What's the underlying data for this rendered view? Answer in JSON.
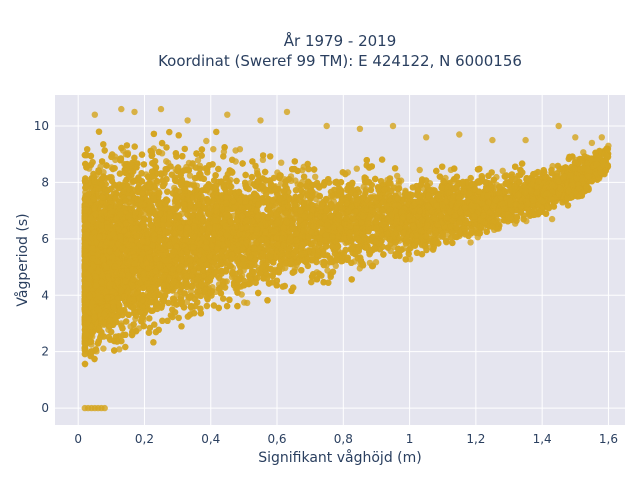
{
  "chart_data": {
    "type": "scatter",
    "title_line1": "År 1979 - 2019",
    "title_line2": "Koordinat (Sweref 99 TM): E 424122, N 6000156",
    "xlabel": "Signifikant våghöjd (m)",
    "ylabel": "Vågperiod (s)",
    "xlim": [
      -0.07,
      1.65
    ],
    "ylim": [
      -0.6,
      11.1
    ],
    "xticks": [
      0,
      0.2,
      0.4,
      0.6,
      0.8,
      1,
      1.2,
      1.4,
      1.6
    ],
    "xtick_labels": [
      "0",
      "0,2",
      "0,4",
      "0,6",
      "0,8",
      "1",
      "1,2",
      "1,4",
      "1,6"
    ],
    "yticks": [
      0,
      2,
      4,
      6,
      8,
      10
    ],
    "ytick_labels": [
      "0",
      "2",
      "4",
      "6",
      "8",
      "10"
    ],
    "grid": true,
    "marker_color": "#d4a520",
    "plot_bg": "#e5e5ef",
    "grid_color": "#ffffff",
    "envelope": {
      "x": [
        0.02,
        0.05,
        0.1,
        0.2,
        0.3,
        0.4,
        0.5,
        0.6,
        0.7,
        0.8,
        0.9,
        1.0,
        1.1,
        1.2,
        1.3,
        1.4,
        1.5,
        1.6
      ],
      "y_low": [
        1.1,
        1.1,
        1.3,
        2.0,
        2.6,
        3.0,
        3.4,
        3.8,
        4.1,
        4.4,
        4.7,
        5.0,
        5.4,
        5.8,
        6.2,
        6.6,
        7.1,
        8.2
      ],
      "y_high": [
        9.6,
        9.9,
        10.2,
        10.4,
        10.2,
        10.0,
        9.6,
        9.5,
        9.3,
        9.2,
        9.1,
        9.0,
        8.9,
        8.8,
        8.8,
        8.9,
        9.2,
        9.5
      ]
    },
    "zero_period_points": {
      "x": [
        0.02,
        0.03,
        0.04,
        0.05,
        0.06,
        0.07,
        0.08
      ],
      "y": [
        0,
        0,
        0,
        0,
        0,
        0,
        0
      ]
    },
    "outliers": {
      "x": [
        0.05,
        0.13,
        0.17,
        0.25,
        0.33,
        0.45,
        0.55,
        0.63,
        0.75,
        0.85,
        0.95,
        1.05,
        1.15,
        1.25,
        1.35,
        1.45,
        1.5,
        1.55,
        1.6,
        1.58,
        1.43,
        1.48
      ],
      "y": [
        10.4,
        10.6,
        10.5,
        10.6,
        10.2,
        10.4,
        10.2,
        10.5,
        10.0,
        9.9,
        10.0,
        9.6,
        9.7,
        9.5,
        9.5,
        10.0,
        9.6,
        9.4,
        9.3,
        9.6,
        6.7,
        7.7
      ]
    },
    "n_points": 14000
  }
}
